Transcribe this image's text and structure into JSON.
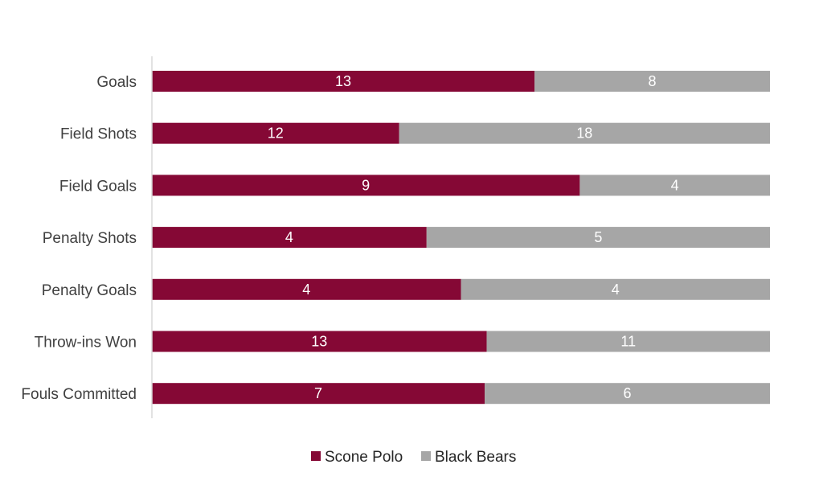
{
  "chart_data": {
    "type": "bar",
    "orientation": "horizontal",
    "stacking": "percent",
    "categories": [
      "Goals",
      "Field Shots",
      "Field Goals",
      "Penalty Shots",
      "Penalty Goals",
      "Throw-ins Won",
      "Fouls Committed"
    ],
    "series": [
      {
        "name": "Scone Polo",
        "values": [
          13,
          12,
          9,
          4,
          4,
          13,
          7
        ],
        "color": "#850835"
      },
      {
        "name": "Black Bears",
        "values": [
          8,
          18,
          4,
          5,
          4,
          11,
          6
        ],
        "color": "#a6a6a6"
      }
    ],
    "title": "",
    "xlabel": "",
    "ylabel": "",
    "grid": false,
    "legend": "bottom"
  }
}
